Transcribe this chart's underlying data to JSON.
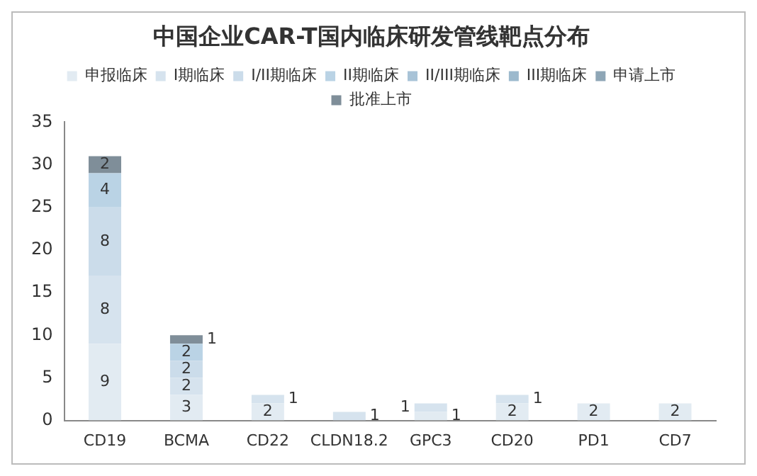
{
  "chart_data": {
    "type": "bar",
    "title": "中国企业CAR-T国内临床研发管线靶点分布",
    "stacked": true,
    "categories": [
      "CD19",
      "BCMA",
      "CD22",
      "CLDN18.2",
      "GPC3",
      "CD20",
      "PD1",
      "CD7"
    ],
    "series": [
      {
        "name": "申报临床",
        "color": "#e2ebf2",
        "values": [
          9,
          3,
          2,
          null,
          1,
          2,
          2,
          2
        ]
      },
      {
        "name": "I期临床",
        "color": "#d6e3ee",
        "values": [
          8,
          2,
          1,
          1,
          1,
          1,
          null,
          null
        ]
      },
      {
        "name": "I/II期临床",
        "color": "#cbdcea",
        "values": [
          8,
          2,
          null,
          null,
          null,
          null,
          null,
          null
        ]
      },
      {
        "name": "II期临床",
        "color": "#bad3e5",
        "values": [
          4,
          2,
          null,
          null,
          null,
          null,
          null,
          null
        ]
      },
      {
        "name": "II/III期临床",
        "color": "#a8c3d7",
        "values": [
          null,
          null,
          null,
          null,
          null,
          null,
          null,
          null
        ]
      },
      {
        "name": "III期临床",
        "color": "#9cb9cd",
        "values": [
          null,
          null,
          null,
          null,
          null,
          null,
          null,
          null
        ]
      },
      {
        "name": "申请上市",
        "color": "#8ea6b6",
        "values": [
          null,
          null,
          null,
          null,
          null,
          null,
          null,
          null
        ]
      },
      {
        "name": "批准上市",
        "color": "#7f8e99",
        "values": [
          2,
          1,
          null,
          null,
          null,
          null,
          null,
          null
        ]
      }
    ],
    "ylim": [
      0,
      35
    ],
    "yticks": [
      0,
      5,
      10,
      15,
      20,
      25,
      30,
      35
    ],
    "grid": false,
    "legend": "top",
    "data_labels": true
  }
}
